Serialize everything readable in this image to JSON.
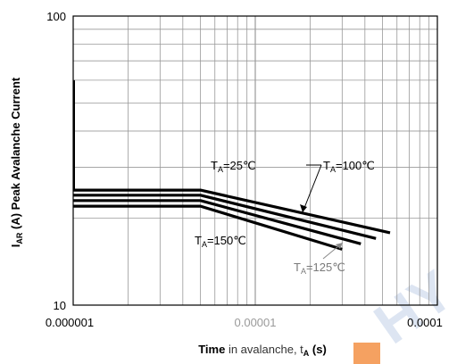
{
  "chart_data": {
    "type": "line",
    "title": "",
    "xlabel": {
      "bold": "Time",
      "rest": " in avalanche, t",
      "sub": "A",
      "unit": " (s)"
    },
    "ylabel": {
      "main": "I",
      "sub": "AR",
      "rest": " (A) Peak Avalanche Current"
    },
    "x_scale": "log",
    "y_scale": "log",
    "xlim": [
      1e-06,
      0.0001
    ],
    "ylim": [
      10,
      100
    ],
    "x_ticks": [
      "0.000001",
      "0.00001",
      "0.0001"
    ],
    "y_ticks": [
      "10",
      "100"
    ],
    "grid": true,
    "series": [
      {
        "name": "TA=25℃",
        "points": [
          [
            1e-06,
            25
          ],
          [
            5e-06,
            25
          ],
          [
            5.5e-05,
            17.8
          ]
        ]
      },
      {
        "name": "TA=100℃",
        "points": [
          [
            1e-06,
            24
          ],
          [
            5e-06,
            24
          ],
          [
            4.6e-05,
            17.0
          ]
        ]
      },
      {
        "name": "TA=125℃",
        "points": [
          [
            1e-06,
            23
          ],
          [
            5e-06,
            23
          ],
          [
            3.8e-05,
            16.3
          ]
        ]
      },
      {
        "name": "TA=150℃",
        "points": [
          [
            1e-06,
            22
          ],
          [
            5e-06,
            22
          ],
          [
            3e-05,
            15.6
          ]
        ]
      }
    ],
    "annotations": [
      {
        "t": "T",
        "sub": "A",
        "rest": "=25℃"
      },
      {
        "t": "T",
        "sub": "A",
        "rest": "=100℃"
      },
      {
        "t": "T",
        "sub": "A",
        "rest": "=150℃"
      },
      {
        "t": "T",
        "sub": "A",
        "rest": "=125℃"
      }
    ]
  },
  "watermark": {
    "text": "HY"
  },
  "colors": {
    "series": "#000000",
    "grid": "#999999",
    "frame": "#000000"
  }
}
